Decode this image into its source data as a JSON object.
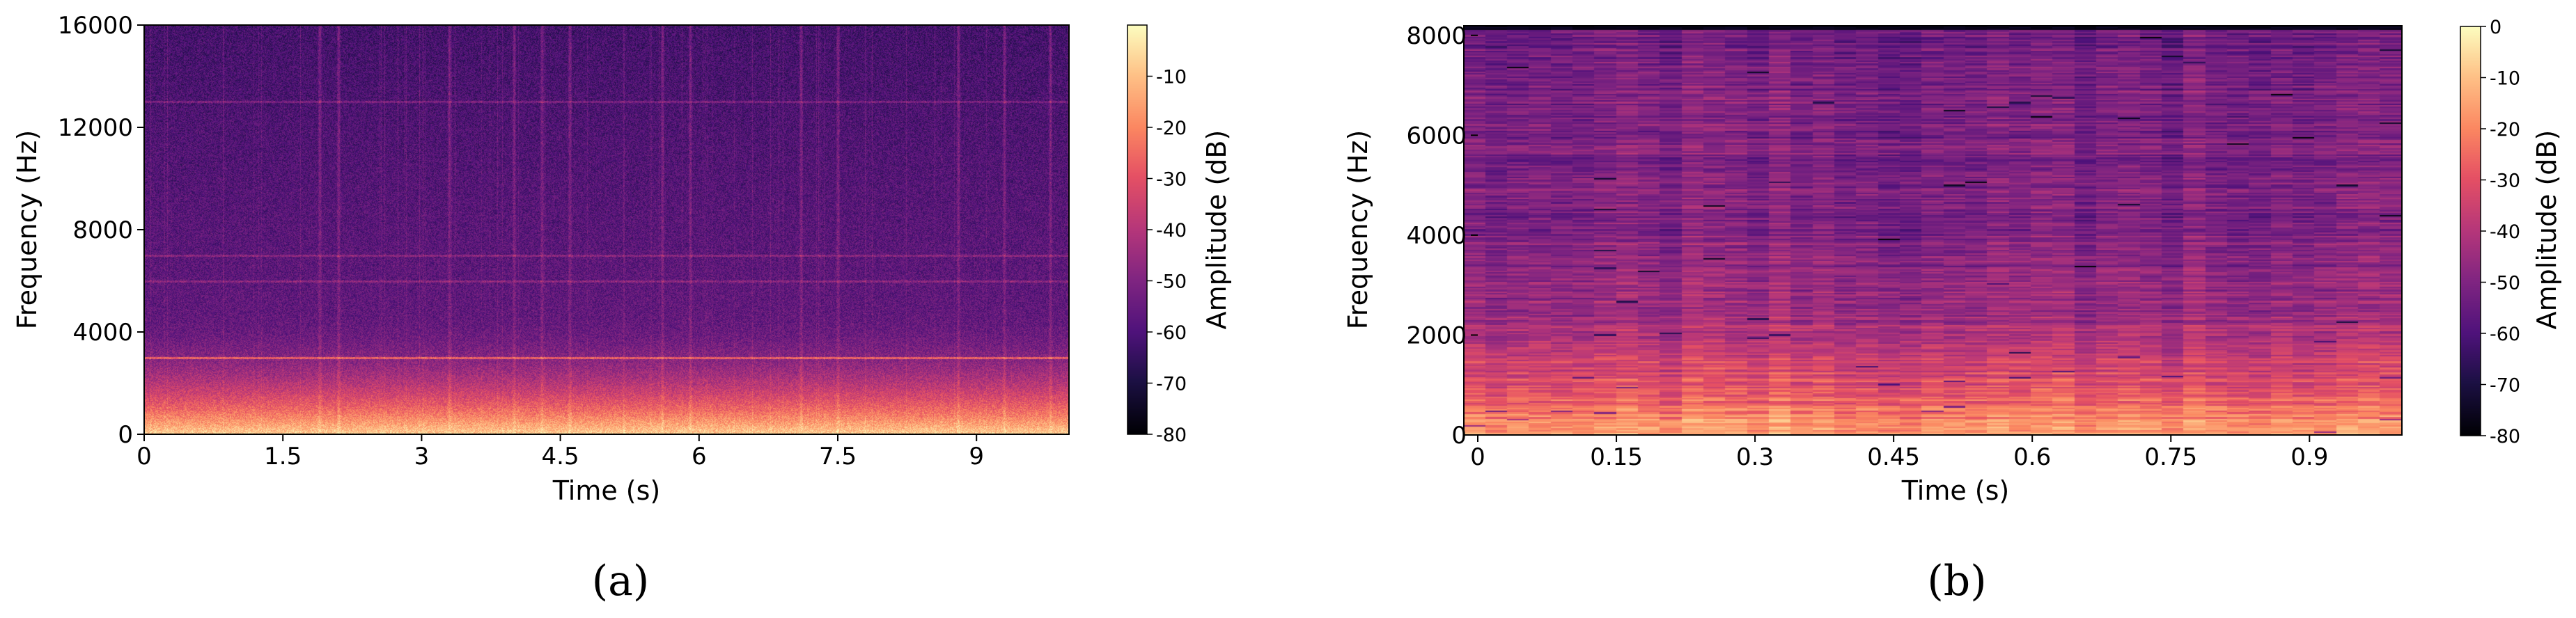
{
  "chart_data": [
    {
      "type": "heatmap",
      "panel_label": "(a)",
      "xlabel": "Time (s)",
      "ylabel": "Frequency (Hz)",
      "xlim": [
        0,
        10
      ],
      "ylim": [
        0,
        16000
      ],
      "xticks": [
        "0",
        "1.5",
        "3",
        "4.5",
        "6",
        "7.5",
        "9"
      ],
      "xtick_values": [
        0,
        1.5,
        3,
        4.5,
        6,
        7.5,
        9
      ],
      "yticks": [
        "0",
        "4000",
        "8000",
        "12000",
        "16000"
      ],
      "ytick_values": [
        0,
        4000,
        8000,
        12000,
        16000
      ],
      "colormap": "magma",
      "colorbar": {
        "label": "Amplitude (dB)",
        "range": [
          -80,
          0
        ],
        "ticks": [
          "-10",
          "-20",
          "-30",
          "-40",
          "-50",
          "-60",
          "-70",
          "-80"
        ],
        "tick_values": [
          -10,
          -20,
          -30,
          -40,
          -50,
          -60,
          -70,
          -80
        ]
      },
      "features": {
        "high_freq_level_db": -62,
        "low_freq_level_db": -15,
        "harmonic_lines_hz": [
          3000,
          6000,
          7000,
          13000
        ],
        "transient_times_s": [
          1.9,
          2.1,
          3.3,
          4.0,
          4.3,
          4.6,
          5.6,
          5.9,
          7.1,
          7.5,
          8.8,
          9.3,
          9.8
        ]
      }
    },
    {
      "type": "heatmap",
      "panel_label": "(b)",
      "xlabel": "Time (s)",
      "ylabel": "Frequency (Hz)",
      "xlim": [
        0,
        1.0
      ],
      "ylim": [
        0,
        8192
      ],
      "xticks": [
        "0",
        "0.15",
        "0.3",
        "0.45",
        "0.6",
        "0.75",
        "0.9"
      ],
      "xtick_values": [
        0,
        0.15,
        0.3,
        0.45,
        0.6,
        0.75,
        0.9
      ],
      "yticks": [
        "0",
        "2000",
        "4000",
        "6000",
        "8000"
      ],
      "ytick_values": [
        0,
        2000,
        4000,
        6000,
        8000
      ],
      "colormap": "magma",
      "colorbar": {
        "label": "Amplitude (dB)",
        "range": [
          -80,
          0
        ],
        "ticks": [
          "0",
          "-10",
          "-20",
          "-30",
          "-40",
          "-50",
          "-60",
          "-70",
          "-80"
        ],
        "tick_values": [
          0,
          -10,
          -20,
          -30,
          -40,
          -50,
          -60,
          -70,
          -80
        ]
      },
      "features": {
        "high_freq_level_db": -52,
        "low_freq_level_db": -20,
        "top_band_level_db": -78
      }
    }
  ]
}
